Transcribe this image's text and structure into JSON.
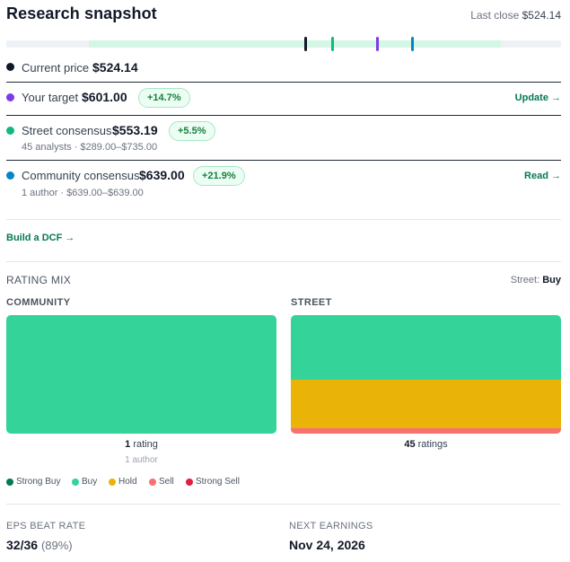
{
  "header": {
    "title": "Research snapshot",
    "last_close_label": "Last close",
    "last_close_value": "$524.14"
  },
  "colors": {
    "current": "#111827",
    "target": "#7c3aed",
    "street": "#10b981",
    "community": "#0284c7",
    "strong_buy": "#047857",
    "buy": "#34d399",
    "hold": "#eab308",
    "sell": "#f87171",
    "strong_sell": "#e11d48"
  },
  "range": {
    "min": 200,
    "max": 800,
    "band_low": 289.0,
    "band_high": 735.0,
    "markers": [
      {
        "name": "current",
        "value": 524.14
      },
      {
        "name": "street",
        "value": 553.19
      },
      {
        "name": "target",
        "value": 601.0
      },
      {
        "name": "community",
        "value": 639.0
      }
    ]
  },
  "rows": {
    "current": {
      "label": "Current price",
      "value": "$524.14"
    },
    "target": {
      "label": "Your target",
      "value": "$601.00",
      "pill": "+14.7%",
      "link": "Update →"
    },
    "street": {
      "label": "Street consensus",
      "value": "$553.19",
      "pill": "+5.5%",
      "sub": "45 analysts · $289.00–$735.00"
    },
    "community": {
      "label": "Community consensus",
      "value": "$639.00",
      "pill": "+21.9%",
      "sub": "1 author · $639.00–$639.00",
      "link": "Read →"
    }
  },
  "dcf_link": "Build a DCF →",
  "rating_mix": {
    "title": "RATING MIX",
    "street_label": "Street:",
    "street_rating": "Buy",
    "community": {
      "heading": "COMMUNITY",
      "count_value": "1",
      "count_unit": "rating",
      "sub": "1 author",
      "shares": {
        "strong_buy": 0,
        "buy": 1.0,
        "hold": 0,
        "sell": 0,
        "strong_sell": 0
      }
    },
    "street": {
      "heading": "STREET",
      "count_value": "45",
      "count_unit": "ratings",
      "shares": {
        "strong_buy": 0,
        "buy": 0.545,
        "hold": 0.41,
        "sell": 0.045,
        "strong_sell": 0
      }
    },
    "legend": [
      {
        "key": "strong_buy",
        "label": "Strong Buy"
      },
      {
        "key": "buy",
        "label": "Buy"
      },
      {
        "key": "hold",
        "label": "Hold"
      },
      {
        "key": "sell",
        "label": "Sell"
      },
      {
        "key": "strong_sell",
        "label": "Strong Sell"
      }
    ]
  },
  "eps": {
    "label": "EPS BEAT RATE",
    "value": "32/36",
    "pct": "(89%)"
  },
  "earnings": {
    "label": "NEXT EARNINGS",
    "value": "Nov 24, 2026"
  }
}
